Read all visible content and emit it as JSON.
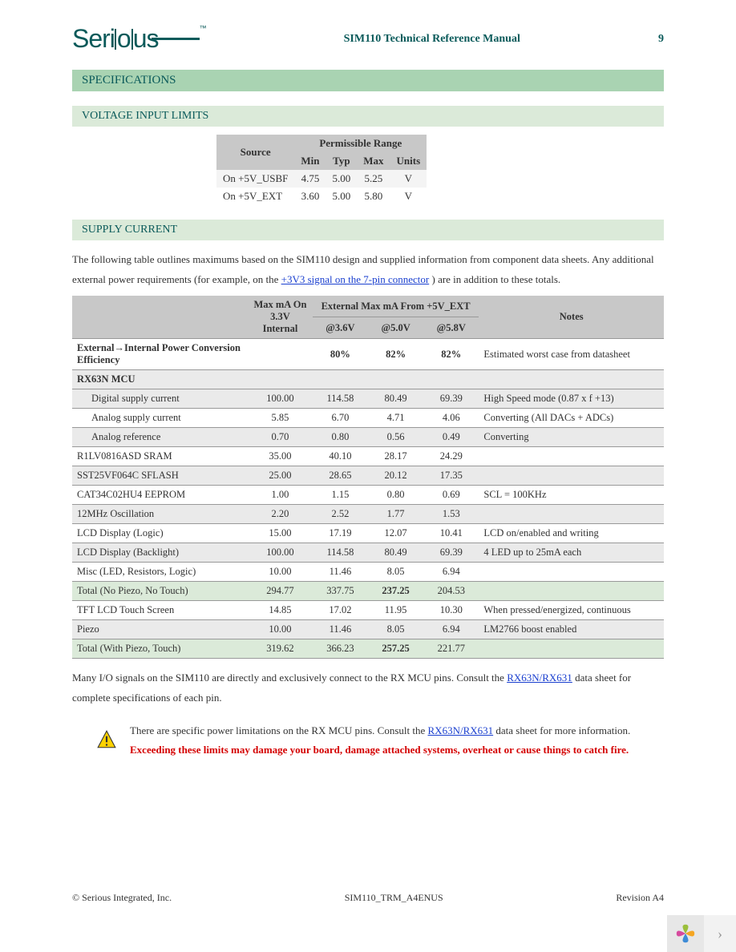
{
  "header": {
    "logo_text": "Serious",
    "doc_title": "SIM110 Technical Reference Manual",
    "page_number": "9"
  },
  "sections": {
    "specifications": "SPECIFICATIONS",
    "voltage_limits": "VOLTAGE INPUT LIMITS",
    "supply_current": "SUPPLY CURRENT"
  },
  "voltage_table": {
    "head_source": "Source",
    "head_range": "Permissible Range",
    "cols": {
      "min": "Min",
      "typ": "Typ",
      "max": "Max",
      "units": "Units"
    },
    "rows": [
      {
        "source": "On  +5V_USBF",
        "min": "4.75",
        "typ": "5.00",
        "max": "5.25",
        "units": "V"
      },
      {
        "source": "On +5V_EXT",
        "min": "3.60",
        "typ": "5.00",
        "max": "5.80",
        "units": "V"
      }
    ]
  },
  "para1_a": "The following table outlines maximums based on the SIM110 design and supplied information from component data sheets.  Any additional external power requirements (for example, on the ",
  "para1_link1": "+3V3 signal on the 7-pin connector",
  "para1_b": ") are in addition to these totals.",
  "supply_table": {
    "head": {
      "max33": "Max mA On 3.3V Internal",
      "ext": "External Max mA From +5V_EXT",
      "v36": "@3.6V",
      "v50": "@5.0V",
      "v58": "@5.8V",
      "notes": "Notes"
    },
    "rows": [
      {
        "cls": "white",
        "bold": true,
        "label": "External→Internal Power Conversion Efficiency",
        "m33": "",
        "v36": "80%",
        "v50": "82%",
        "v58": "82%",
        "notes": "Estimated worst case from datasheet"
      },
      {
        "cls": "gray",
        "bold": true,
        "label": "RX63N MCU",
        "m33": "",
        "v36": "",
        "v50": "",
        "v58": "",
        "notes": ""
      },
      {
        "cls": "gray",
        "indent": true,
        "label": "Digital supply current",
        "m33": "100.00",
        "v36": "114.58",
        "v50": "80.49",
        "v58": "69.39",
        "notes": "High Speed mode (0.87 x f +13)"
      },
      {
        "cls": "white",
        "indent": true,
        "label": "Analog supply current",
        "m33": "5.85",
        "v36": "6.70",
        "v50": "4.71",
        "v58": "4.06",
        "notes": "Converting (All DACs + ADCs)"
      },
      {
        "cls": "gray",
        "indent": true,
        "label": "Analog reference",
        "m33": "0.70",
        "v36": "0.80",
        "v50": "0.56",
        "v58": "0.49",
        "notes": "Converting"
      },
      {
        "cls": "white",
        "label": "R1LV0816ASD SRAM",
        "m33": "35.00",
        "v36": "40.10",
        "v50": "28.17",
        "v58": "24.29",
        "notes": ""
      },
      {
        "cls": "gray",
        "label": "SST25VF064C SFLASH",
        "m33": "25.00",
        "v36": "28.65",
        "v50": "20.12",
        "v58": "17.35",
        "notes": ""
      },
      {
        "cls": "white",
        "label": "CAT34C02HU4 EEPROM",
        "m33": "1.00",
        "v36": "1.15",
        "v50": "0.80",
        "v58": "0.69",
        "notes": "SCL = 100KHz"
      },
      {
        "cls": "gray",
        "label": "12MHz Oscillation",
        "m33": "2.20",
        "v36": "2.52",
        "v50": "1.77",
        "v58": "1.53",
        "notes": ""
      },
      {
        "cls": "white",
        "label": "LCD Display (Logic)",
        "m33": "15.00",
        "v36": "17.19",
        "v50": "12.07",
        "v58": "10.41",
        "notes": "LCD on/enabled and writing"
      },
      {
        "cls": "gray",
        "label": "LCD Display (Backlight)",
        "m33": "100.00",
        "v36": "114.58",
        "v50": "80.49",
        "v58": "69.39",
        "notes": "4 LED up to 25mA each"
      },
      {
        "cls": "white",
        "label": "Misc (LED, Resistors, Logic)",
        "m33": "10.00",
        "v36": "11.46",
        "v50": "8.05",
        "v58": "6.94",
        "notes": ""
      },
      {
        "cls": "green",
        "label": "Total (No Piezo, No Touch)",
        "m33": "294.77",
        "v36": "337.75",
        "v50": "237.25",
        "v50_bold": true,
        "v58": "204.53",
        "notes": ""
      },
      {
        "cls": "white",
        "label": "TFT LCD Touch Screen",
        "m33": "14.85",
        "v36": "17.02",
        "v50": "11.95",
        "v58": "10.30",
        "notes": "When pressed/energized, continuous"
      },
      {
        "cls": "gray",
        "label": "Piezo",
        "m33": "10.00",
        "v36": "11.46",
        "v50": "8.05",
        "v58": "6.94",
        "notes": "LM2766 boost enabled"
      },
      {
        "cls": "green",
        "label": "Total (With Piezo, Touch)",
        "m33": "319.62",
        "v36": "366.23",
        "v50": "257.25",
        "v50_bold": true,
        "v58": "221.77",
        "notes": ""
      }
    ]
  },
  "para2_a": "Many I/O signals on the SIM110 are directly and exclusively connect to the RX MCU pins.  Consult the ",
  "para2_link": "RX63N/RX631",
  "para2_b": " data sheet for complete specifications of each pin.",
  "warn": {
    "a": "There are specific power limitations on the RX MCU pins.  Consult the ",
    "link": "RX63N/RX631",
    "b": " data sheet for more information.        ",
    "red": "Exceeding these limits may damage your board, damage attached systems, overheat or cause things to catch fire."
  },
  "footer": {
    "left": "© Serious Integrated, Inc.",
    "center": "SIM110_TRM_A4ENUS",
    "right": "Revision A4"
  }
}
